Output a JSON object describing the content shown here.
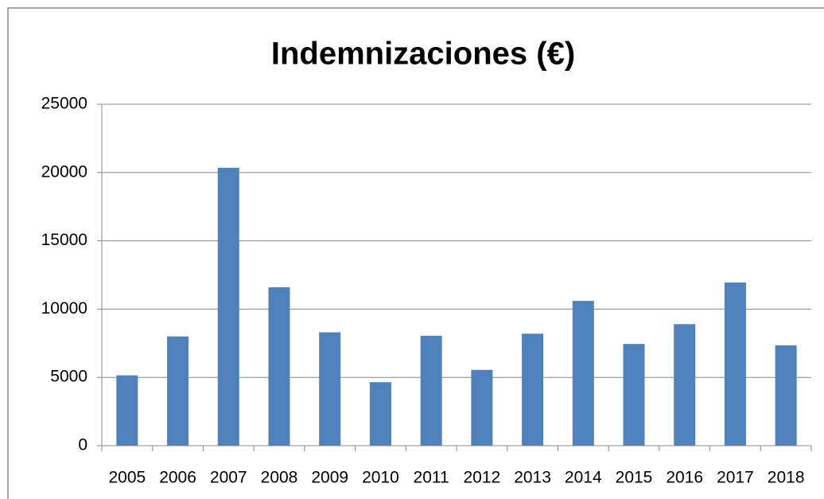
{
  "chart_data": {
    "type": "bar",
    "title": "Indemnizaciones (€)",
    "categories": [
      "2005",
      "2006",
      "2007",
      "2008",
      "2009",
      "2010",
      "2011",
      "2012",
      "2013",
      "2014",
      "2015",
      "2016",
      "2017",
      "2018"
    ],
    "values": [
      5150,
      8000,
      20350,
      11600,
      8300,
      4650,
      8050,
      5550,
      8200,
      10600,
      7450,
      8900,
      11950,
      7350
    ],
    "color": "#4f81bd",
    "ylim": [
      0,
      25000
    ],
    "yticks": [
      0,
      5000,
      10000,
      15000,
      20000,
      25000
    ],
    "grid": true
  }
}
